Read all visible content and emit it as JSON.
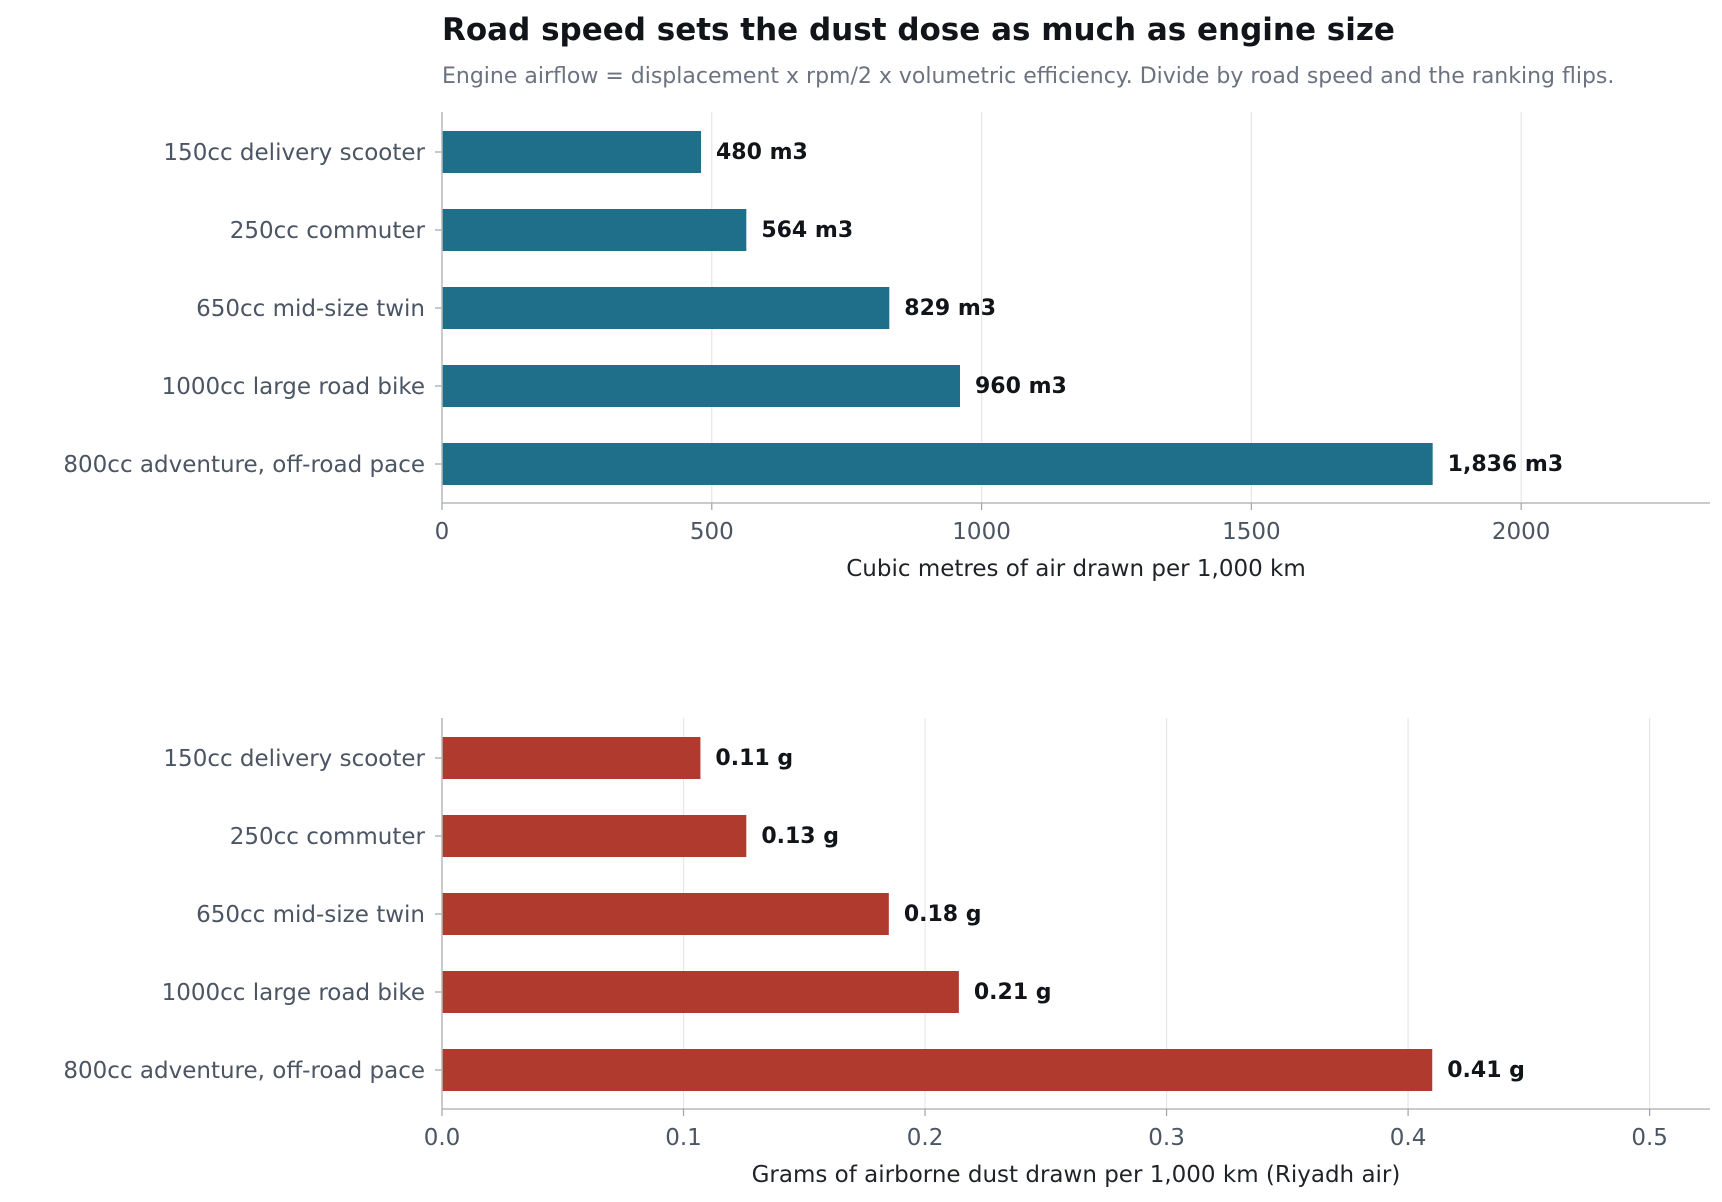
{
  "title": "Road speed sets the dust dose as much as engine size",
  "subtitle": "Engine airflow = displacement x rpm/2 x volumetric efficiency. Divide by road speed and the ranking flips.",
  "chart_data": [
    {
      "type": "bar",
      "orientation": "horizontal",
      "categories": [
        "150cc delivery scooter",
        "250cc commuter",
        "650cc mid-size twin",
        "1000cc large road bike",
        "800cc adventure, off-road pace"
      ],
      "values": [
        480,
        564,
        829,
        960,
        1836
      ],
      "value_labels": [
        "480 m3",
        "564 m3",
        "829 m3",
        "960 m3",
        "1,836 m3"
      ],
      "xlabel": "Cubic metres of air drawn per 1,000 km",
      "ylabel": "",
      "xlim": [
        0,
        2350
      ],
      "xticks": [
        0,
        500,
        1000,
        1500,
        2000
      ],
      "xtick_labels": [
        "0",
        "500",
        "1000",
        "1500",
        "2000"
      ],
      "grid": "vertical",
      "color": "#1f6f8b"
    },
    {
      "type": "bar",
      "orientation": "horizontal",
      "categories": [
        "150cc delivery scooter",
        "250cc commuter",
        "650cc mid-size twin",
        "1000cc large road bike",
        "800cc adventure, off-road pace"
      ],
      "values": [
        0.107,
        0.126,
        0.185,
        0.214,
        0.41
      ],
      "value_labels": [
        "0.11 g",
        "0.13 g",
        "0.18 g",
        "0.21 g",
        "0.41 g"
      ],
      "xlabel": "Grams of airborne dust drawn per 1,000 km (Riyadh air)",
      "ylabel": "",
      "xlim": [
        0,
        0.525
      ],
      "xticks": [
        0,
        0.1,
        0.2,
        0.3,
        0.4,
        0.5
      ],
      "xtick_labels": [
        "0.0",
        "0.1",
        "0.2",
        "0.3",
        "0.4",
        "0.5"
      ],
      "grid": "vertical",
      "color": "#b03a2e"
    }
  ]
}
